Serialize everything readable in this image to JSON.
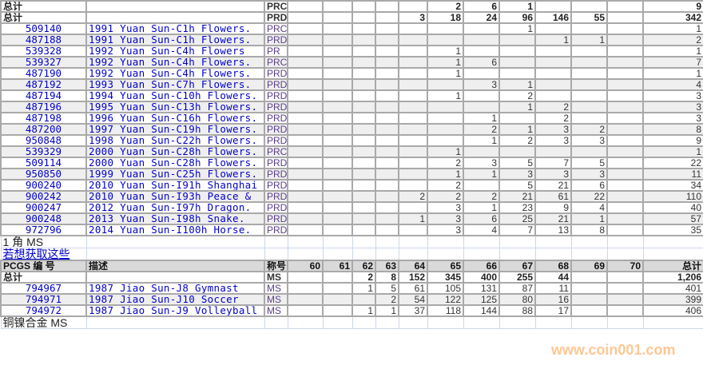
{
  "upper": {
    "rows": [
      {
        "id": "总计",
        "desc": "",
        "grade": "PRC",
        "vals": [
          "",
          "",
          "",
          "",
          "",
          "2",
          "6",
          "1",
          "",
          "",
          ""
        ],
        "total": "9",
        "kind": "tot"
      },
      {
        "id": "总计",
        "desc": "",
        "grade": "PRD",
        "vals": [
          "",
          "",
          "",
          "",
          "3",
          "18",
          "24",
          "96",
          "146",
          "55",
          ""
        ],
        "total": "342",
        "kind": "tot"
      },
      {
        "id": "509140",
        "desc": "1991 Yuan Sun-C1h Flowers.",
        "grade": "PRC",
        "vals": [
          "",
          "",
          "",
          "",
          "",
          "",
          "",
          "1",
          "",
          "",
          ""
        ],
        "total": "1"
      },
      {
        "id": "487188",
        "desc": "1991 Yuan Sun-C1h Flowers.",
        "grade": "PRD",
        "vals": [
          "",
          "",
          "",
          "",
          "",
          "",
          "",
          "",
          "1",
          "1",
          ""
        ],
        "total": "2"
      },
      {
        "id": "539328",
        "desc": "1992 Yuan Sun-C4h Flowers",
        "grade": "PR",
        "vals": [
          "",
          "",
          "",
          "",
          "",
          "1",
          "",
          "",
          "",
          "",
          ""
        ],
        "total": "1"
      },
      {
        "id": "539327",
        "desc": "1992 Yuan Sun-C4h Flowers.",
        "grade": "PRC",
        "vals": [
          "",
          "",
          "",
          "",
          "",
          "1",
          "6",
          "",
          "",
          "",
          ""
        ],
        "total": "7"
      },
      {
        "id": "487190",
        "desc": "1992 Yuan Sun-C4h Flowers.",
        "grade": "PRD",
        "vals": [
          "",
          "",
          "",
          "",
          "",
          "1",
          "",
          "",
          "",
          "",
          ""
        ],
        "total": "1"
      },
      {
        "id": "487192",
        "desc": "1993 Yuan Sun-C7h Flowers.",
        "grade": "PRD",
        "vals": [
          "",
          "",
          "",
          "",
          "",
          "",
          "3",
          "1",
          "",
          "",
          ""
        ],
        "total": "4"
      },
      {
        "id": "487194",
        "desc": "1994 Yuan Sun-C10h Flowers.",
        "grade": "PRD",
        "vals": [
          "",
          "",
          "",
          "",
          "",
          "1",
          "",
          "2",
          "",
          "",
          ""
        ],
        "total": "3"
      },
      {
        "id": "487196",
        "desc": "1995 Yuan Sun-C13h Flowers.",
        "grade": "PRD",
        "vals": [
          "",
          "",
          "",
          "",
          "",
          "",
          "",
          "1",
          "2",
          "",
          ""
        ],
        "total": "3"
      },
      {
        "id": "487198",
        "desc": "1996 Yuan Sun-C16h Flowers.",
        "grade": "PRD",
        "vals": [
          "",
          "",
          "",
          "",
          "",
          "",
          "1",
          "",
          "2",
          "",
          ""
        ],
        "total": "3"
      },
      {
        "id": "487200",
        "desc": "1997 Yuan Sun-C19h Flowers.",
        "grade": "PRD",
        "vals": [
          "",
          "",
          "",
          "",
          "",
          "",
          "2",
          "1",
          "3",
          "2",
          ""
        ],
        "total": "8"
      },
      {
        "id": "950848",
        "desc": "1998 Yuan Sun-C22h Flowers.",
        "grade": "PRD",
        "vals": [
          "",
          "",
          "",
          "",
          "",
          "",
          "1",
          "2",
          "3",
          "3",
          ""
        ],
        "total": "9"
      },
      {
        "id": "539329",
        "desc": "2000 Yuan Sun-C28h Flowers.",
        "grade": "PRC",
        "vals": [
          "",
          "",
          "",
          "",
          "",
          "1",
          "",
          "",
          "",
          "",
          ""
        ],
        "total": "1"
      },
      {
        "id": "509114",
        "desc": "2000 Yuan Sun-C28h Flowers.",
        "grade": "PRD",
        "vals": [
          "",
          "",
          "",
          "",
          "",
          "2",
          "3",
          "5",
          "7",
          "5",
          ""
        ],
        "total": "22"
      },
      {
        "id": "950850",
        "desc": "1999 Yuan Sun-C25h Flowers.",
        "grade": "PRD",
        "vals": [
          "",
          "",
          "",
          "",
          "",
          "1",
          "1",
          "3",
          "3",
          "3",
          ""
        ],
        "total": "11"
      },
      {
        "id": "900240",
        "desc": "2010 Yuan Sun-I91h Shanghai",
        "grade": "PRD",
        "vals": [
          "",
          "",
          "",
          "",
          "",
          "2",
          "",
          "5",
          "21",
          "6",
          ""
        ],
        "total": "34"
      },
      {
        "id": "900242",
        "desc": "2010 Yuan Sun-I93h Peace &",
        "grade": "PRD",
        "vals": [
          "",
          "",
          "",
          "",
          "2",
          "2",
          "2",
          "21",
          "61",
          "22",
          ""
        ],
        "total": "110"
      },
      {
        "id": "900247",
        "desc": "2012 Yuan Sun-I97h Dragon.",
        "grade": "PRD",
        "vals": [
          "",
          "",
          "",
          "",
          "",
          "3",
          "1",
          "23",
          "9",
          "4",
          ""
        ],
        "total": "40"
      },
      {
        "id": "900248",
        "desc": "2013 Yuan Sun-I98h Snake.",
        "grade": "PRD",
        "vals": [
          "",
          "",
          "",
          "",
          "1",
          "3",
          "6",
          "25",
          "21",
          "1",
          ""
        ],
        "total": "57"
      },
      {
        "id": "972796",
        "desc": "2014 Yuan Sun-I100h Horse.",
        "grade": "PRD",
        "vals": [
          "",
          "",
          "",
          "",
          "",
          "3",
          "4",
          "7",
          "13",
          "8",
          ""
        ],
        "total": "35"
      }
    ]
  },
  "section_title": "1 角  MS",
  "link_text": "若想获取这些",
  "lower": {
    "headers": {
      "id": "PCGS 编 号",
      "desc": "描述",
      "grade": "称号",
      "vals": [
        "60",
        "61",
        "62",
        "63",
        "64",
        "65",
        "66",
        "67",
        "68",
        "69",
        "70"
      ],
      "total": "总计"
    },
    "rows": [
      {
        "id": "总计",
        "desc": "",
        "grade": "MS",
        "vals": [
          "",
          "",
          "2",
          "8",
          "152",
          "345",
          "400",
          "255",
          "44",
          "",
          ""
        ],
        "total": "1,206",
        "kind": "tot"
      },
      {
        "id": "794967",
        "desc": "1987 Jiao Sun-J8 Gymnast",
        "grade": "MS",
        "vals": [
          "",
          "",
          "1",
          "5",
          "61",
          "105",
          "131",
          "87",
          "11",
          "",
          ""
        ],
        "total": "401"
      },
      {
        "id": "794971",
        "desc": "1987 Jiao Sun-J10 Soccer",
        "grade": "MS",
        "vals": [
          "",
          "",
          "",
          "2",
          "54",
          "122",
          "125",
          "80",
          "16",
          "",
          ""
        ],
        "total": "399"
      },
      {
        "id": "794972",
        "desc": "1987 Jiao Sun-J9 Volleyball",
        "grade": "MS",
        "vals": [
          "",
          "",
          "1",
          "1",
          "37",
          "118",
          "144",
          "88",
          "17",
          "",
          ""
        ],
        "total": "406"
      }
    ]
  },
  "footer_section": "铜镍合金  MS",
  "watermark": "www.coin001.com"
}
